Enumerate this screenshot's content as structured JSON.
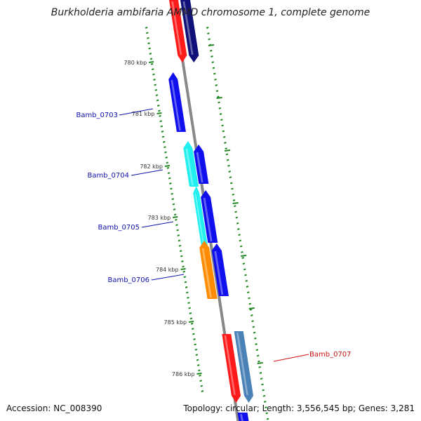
{
  "title": "Burkholderia ambifaria AMMD chromosome 1, complete genome",
  "footer": {
    "accession": "Accession: NC_008390",
    "summary": "Topology: circular; Length: 3,556,545 bp; Genes: 3,281"
  },
  "colors": {
    "backbone": "#888888",
    "tick": "#228822",
    "label_blue": "#1111aa",
    "label_red": "#cc1111",
    "gene_red": "#ff1a1a",
    "gene_navy": "#10107a",
    "gene_blue": "#1010ee",
    "gene_cyan": "#22f0f0",
    "gene_orange": "#ff8c00",
    "gene_steel": "#4a82b8"
  },
  "kbp_labels": [
    "780 kbp",
    "781 kbp",
    "782 kbp",
    "783 kbp",
    "784 kbp",
    "785 kbp",
    "786 kbp"
  ],
  "gene_labels": [
    {
      "id": "Bamb_0703",
      "text": "Bamb_0703",
      "color": "label_blue"
    },
    {
      "id": "Bamb_0704",
      "text": "Bamb_0704",
      "color": "label_blue"
    },
    {
      "id": "Bamb_0705",
      "text": "Bamb_0705",
      "color": "label_blue"
    },
    {
      "id": "Bamb_0706",
      "text": "Bamb_0706",
      "color": "label_blue"
    },
    {
      "id": "Bamb_0707",
      "text": "Bamb_0707",
      "color": "label_red"
    }
  ]
}
